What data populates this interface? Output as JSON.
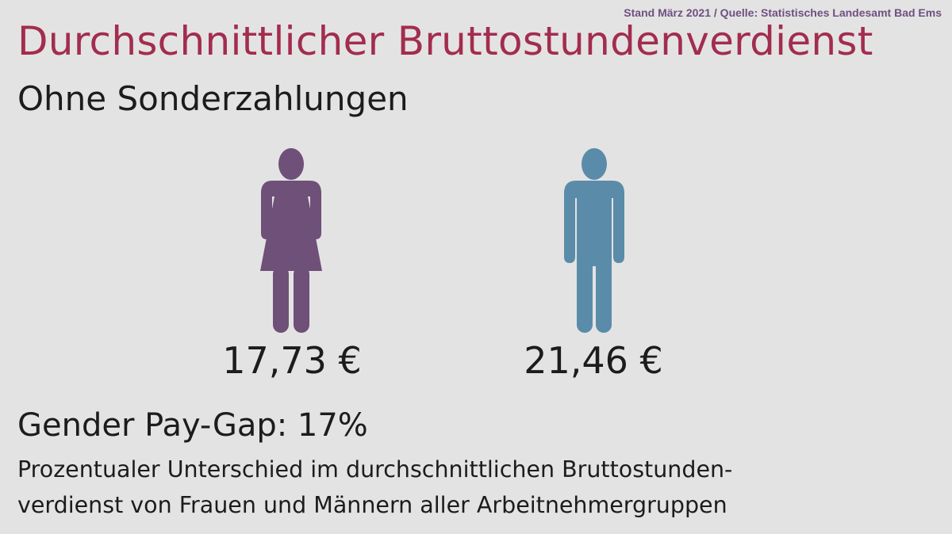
{
  "source": "Stand März 2021 / Quelle: Statistisches Landesamt Bad Ems",
  "title": "Durchschnittlicher Bruttostundenverdienst",
  "subtitle": "Ohne Sonderzahlungen",
  "women": {
    "icon": "woman-icon",
    "value": "17,73 €",
    "color": "#6e5078"
  },
  "men": {
    "icon": "man-icon",
    "value": "21,46 €",
    "color": "#5a8caa"
  },
  "gap_heading": "Gender Pay-Gap: 17%",
  "description": {
    "line1": "Prozentualer Unterschied im durchschnittlichen Bruttostunden-",
    "line2": "verdienst von Frauen und Männern aller Arbeitnehmergruppen"
  }
}
